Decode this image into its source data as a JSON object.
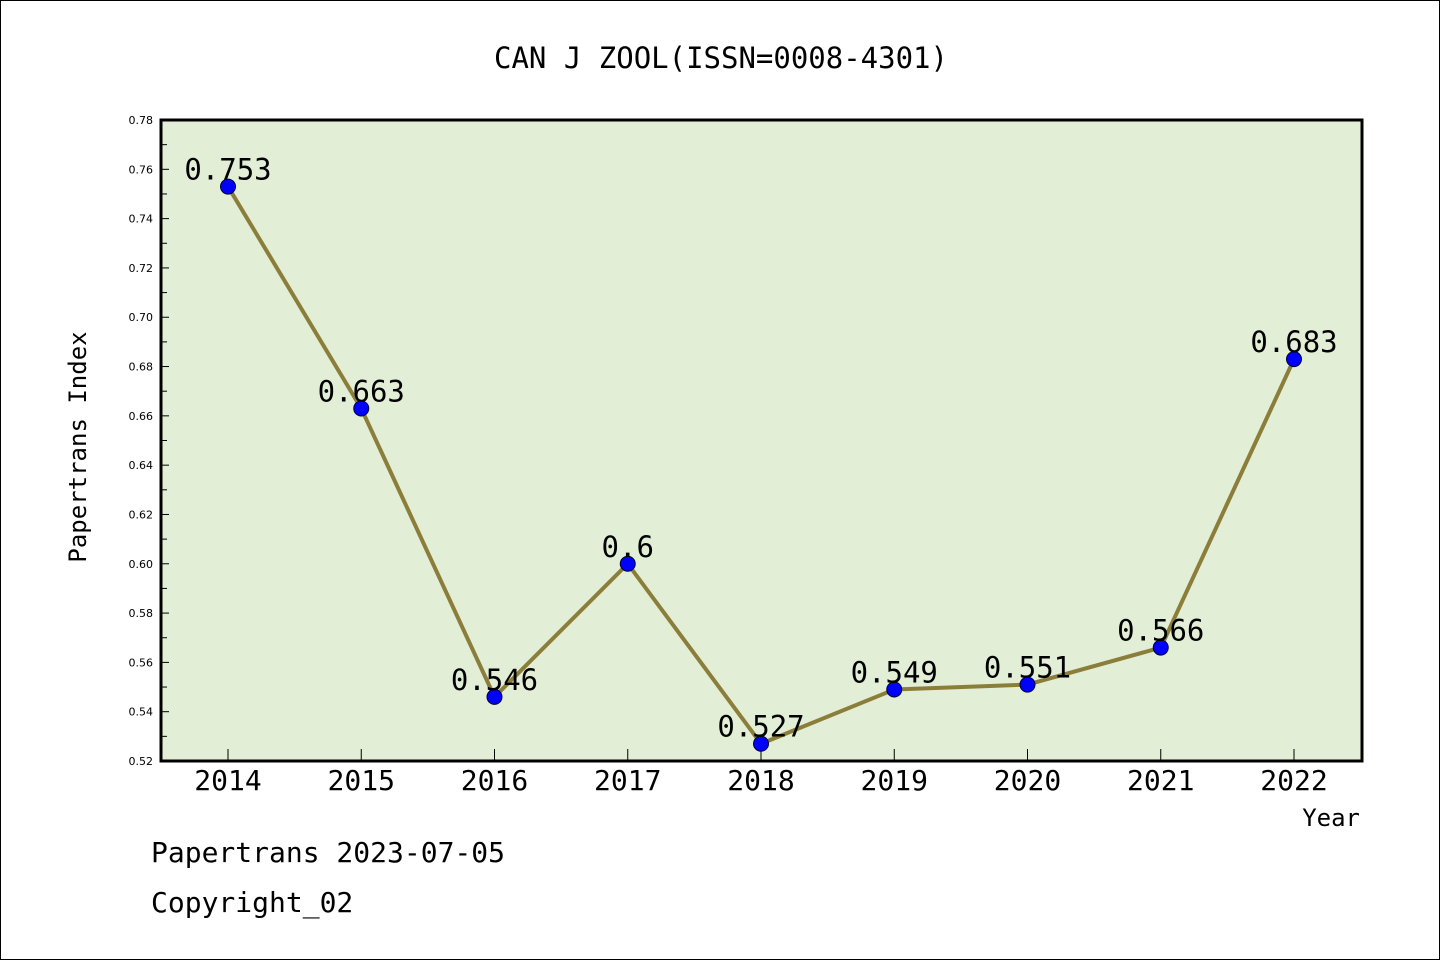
{
  "chart_data": {
    "type": "line",
    "title": "CAN J ZOOL(ISSN=0008-4301)",
    "xlabel": "Year",
    "ylabel": "Papertrans Index",
    "categories": [
      "2014",
      "2015",
      "2016",
      "2017",
      "2018",
      "2019",
      "2020",
      "2021",
      "2022"
    ],
    "values": [
      0.753,
      0.663,
      0.546,
      0.6,
      0.527,
      0.549,
      0.551,
      0.566,
      0.683
    ],
    "data_labels": [
      "0.753",
      "0.663",
      "0.546",
      "0.6",
      "0.527",
      "0.549",
      "0.551",
      "0.566",
      "0.683"
    ],
    "ylim": [
      0.52,
      0.78
    ],
    "yticks": [
      "0.52",
      "0.54",
      "0.56",
      "0.58",
      "0.60",
      "0.62",
      "0.64",
      "0.66",
      "0.68",
      "0.70",
      "0.72",
      "0.74",
      "0.76",
      "0.78"
    ],
    "grid": false,
    "legend": "none",
    "colors": {
      "line": "#8B7D3A",
      "marker": "#0000FF",
      "plot_background": "#E2EFD6",
      "axis": "#000000"
    }
  },
  "footer": {
    "line1": "Papertrans 2023-07-05",
    "line2": "Copyright_02"
  }
}
